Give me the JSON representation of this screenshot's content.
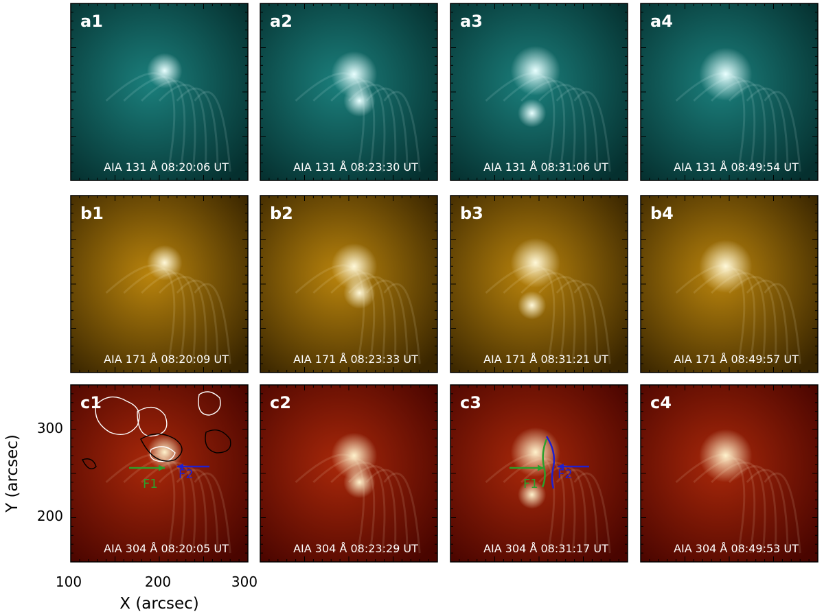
{
  "figure": {
    "panels": [
      {
        "id": "a1",
        "row": 0,
        "col": 0,
        "label": "a1",
        "caption": "AIA 131 Å 08:20:06 UT"
      },
      {
        "id": "a2",
        "row": 0,
        "col": 1,
        "label": "a2",
        "caption": "AIA 131 Å 08:23:30 UT"
      },
      {
        "id": "a3",
        "row": 0,
        "col": 2,
        "label": "a3",
        "caption": "AIA 131 Å 08:31:06 UT"
      },
      {
        "id": "a4",
        "row": 0,
        "col": 3,
        "label": "a4",
        "caption": "AIA 131 Å 08:49:54 UT"
      },
      {
        "id": "b1",
        "row": 1,
        "col": 0,
        "label": "b1",
        "caption": "AIA 171 Å 08:20:09 UT"
      },
      {
        "id": "b2",
        "row": 1,
        "col": 1,
        "label": "b2",
        "caption": "AIA 171 Å 08:23:33 UT"
      },
      {
        "id": "b3",
        "row": 1,
        "col": 2,
        "label": "b3",
        "caption": "AIA 171 Å 08:31:21 UT"
      },
      {
        "id": "b4",
        "row": 1,
        "col": 3,
        "label": "b4",
        "caption": "AIA 171 Å 08:49:57 UT"
      },
      {
        "id": "c1",
        "row": 2,
        "col": 0,
        "label": "c1",
        "caption": "AIA 304 Å 08:20:05 UT"
      },
      {
        "id": "c2",
        "row": 2,
        "col": 1,
        "label": "c2",
        "caption": "AIA 304 Å 08:23:29 UT"
      },
      {
        "id": "c3",
        "row": 2,
        "col": 2,
        "label": "c3",
        "caption": "AIA 304 Å 08:31:17 UT"
      },
      {
        "id": "c4",
        "row": 2,
        "col": 3,
        "label": "c4",
        "caption": "AIA 304 Å 08:49:53 UT"
      }
    ],
    "row_colors": {
      "a": {
        "dark": "#05302f",
        "mid": "#1b7f7c",
        "bright": "#e8ffff"
      },
      "b": {
        "dark": "#3a2600",
        "mid": "#b9840d",
        "bright": "#fff8d8"
      },
      "c": {
        "dark": "#4a0500",
        "mid": "#a8280a",
        "bright": "#fff2cc"
      }
    },
    "x_axis": {
      "title": "X (arcsec)",
      "ticks": [
        "100",
        "200",
        "300"
      ]
    },
    "y_axis": {
      "title": "Y (arcsec)",
      "ticks": [
        "200",
        "300"
      ]
    },
    "annotations": {
      "c1_arrows": [
        {
          "label": "F1",
          "color": "#2ca02c"
        },
        {
          "label": "F2",
          "color": "#1f1fd0"
        }
      ],
      "c3_arrows": [
        {
          "label": "F1",
          "color": "#2ca02c"
        },
        {
          "label": "F2",
          "color": "#1f1fd0"
        }
      ],
      "contour_colors": {
        "positive": "#ffffff",
        "negative": "#000000"
      }
    }
  }
}
